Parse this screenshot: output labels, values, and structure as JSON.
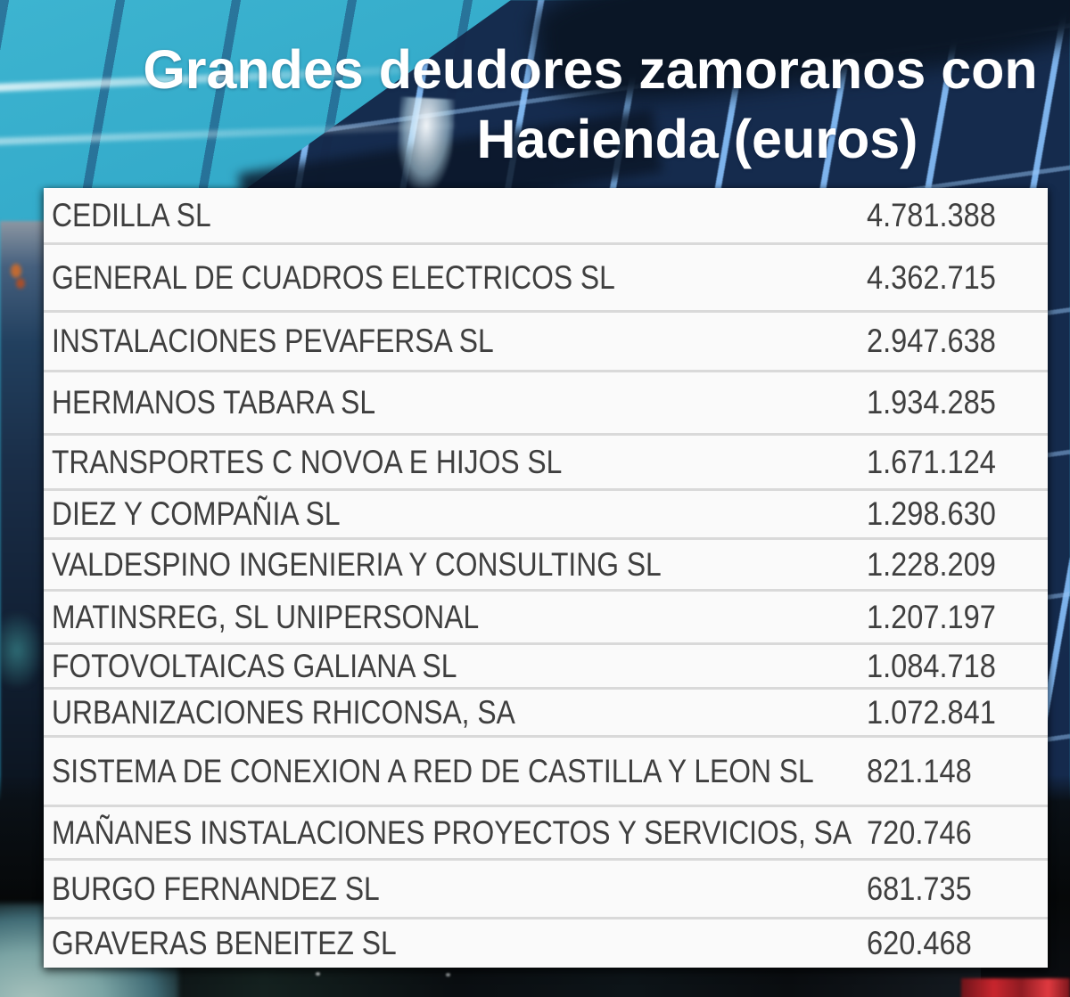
{
  "title": {
    "line1": "Grandes deudores zamoranos con",
    "line2": "Hacienda (euros)"
  },
  "table": {
    "rows": [
      {
        "name": "CEDILLA SL",
        "amount": "4.781.388"
      },
      {
        "name": "GENERAL DE CUADROS ELECTRICOS SL",
        "amount": "4.362.715"
      },
      {
        "name": "INSTALACIONES PEVAFERSA SL",
        "amount": "2.947.638"
      },
      {
        "name": "HERMANOS TABARA SL",
        "amount": "1.934.285"
      },
      {
        "name": "TRANSPORTES C NOVOA E HIJOS SL",
        "amount": "1.671.124"
      },
      {
        "name": "DIEZ Y COMPAÑIA SL",
        "amount": "1.298.630"
      },
      {
        "name": "VALDESPINO INGENIERIA Y CONSULTING SL",
        "amount": "1.228.209"
      },
      {
        "name": "MATINSREG, SL UNIPERSONAL",
        "amount": "1.207.197"
      },
      {
        "name": "FOTOVOLTAICAS GALIANA SL",
        "amount": "1.084.718"
      },
      {
        "name": "URBANIZACIONES RHICONSA, SA",
        "amount": "1.072.841"
      },
      {
        "name": "SISTEMA DE CONEXION A RED DE CASTILLA Y LEON SL",
        "amount": "821.148"
      },
      {
        "name": "MAÑANES INSTALACIONES PROYECTOS Y SERVICIOS, SA",
        "amount": "720.746"
      },
      {
        "name": "BURGO FERNANDEZ SL",
        "amount": "681.735"
      },
      {
        "name": "GRAVERAS BENEITEZ SL",
        "amount": "620.468"
      }
    ]
  },
  "chart_data": {
    "type": "table",
    "title": "Grandes deudores zamoranos con Hacienda (euros)",
    "unit": "euros",
    "categories": [
      "CEDILLA SL",
      "GENERAL DE CUADROS ELECTRICOS SL",
      "INSTALACIONES PEVAFERSA SL",
      "HERMANOS TABARA SL",
      "TRANSPORTES C NOVOA E HIJOS SL",
      "DIEZ Y COMPAÑIA SL",
      "VALDESPINO INGENIERIA Y CONSULTING SL",
      "MATINSREG, SL UNIPERSONAL",
      "FOTOVOLTAICAS GALIANA SL",
      "URBANIZACIONES RHICONSA, SA",
      "SISTEMA DE CONEXION A RED DE CASTILLA Y LEON SL",
      "MAÑANES INSTALACIONES PROYECTOS Y SERVICIOS, SA",
      "BURGO FERNANDEZ SL",
      "GRAVERAS BENEITEZ SL"
    ],
    "values": [
      4781388,
      4362715,
      2947638,
      1934285,
      1671124,
      1298630,
      1228209,
      1207197,
      1084718,
      1072841,
      821148,
      720746,
      681735,
      620468
    ]
  },
  "colors": {
    "title_text": "#ffffff",
    "table_background": "#fafafa",
    "row_text": "#3f3f3f",
    "row_separator": "#d9d9d9",
    "sky_teal": "#2aa1c3",
    "facade_navy": "#16294a",
    "frame_blue": "#82b4ee",
    "taillight_red": "#c9262e"
  }
}
